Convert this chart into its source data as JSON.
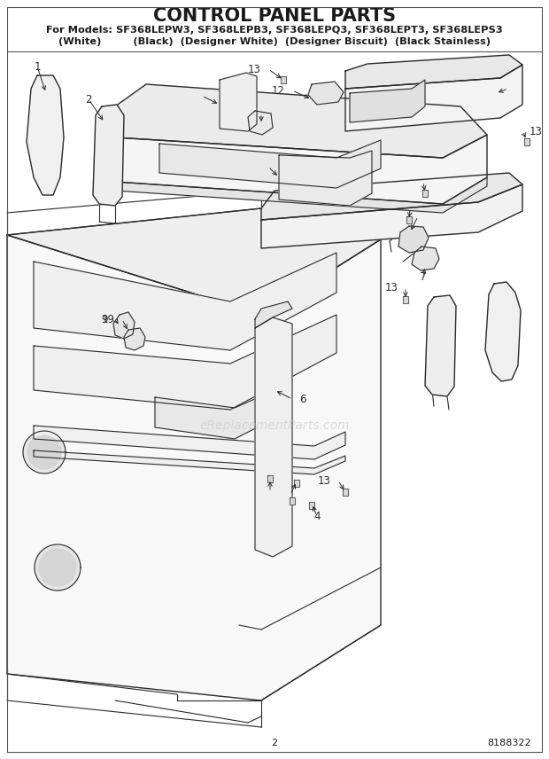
{
  "title": "CONTROL PANEL PARTS",
  "subtitle1": "For Models: SF368LEPW3, SF368LEPB3, SF368LEPQ3, SF368LEPT3, SF368LEPS3",
  "subtitle2": "(White)         (Black)  (Designer White)  (Designer Biscuit)  (Black Stainless)",
  "page_number": "2",
  "part_number": "8188322",
  "watermark": "eReplacementParts.com",
  "bg_color": "#ffffff",
  "line_color": "#2a2a2a",
  "text_color": "#1a1a1a",
  "watermark_color": "#c8c8c8",
  "title_fontsize": 15,
  "subtitle_fontsize": 8.2,
  "label_fontsize": 8.5,
  "footer_fontsize": 8
}
